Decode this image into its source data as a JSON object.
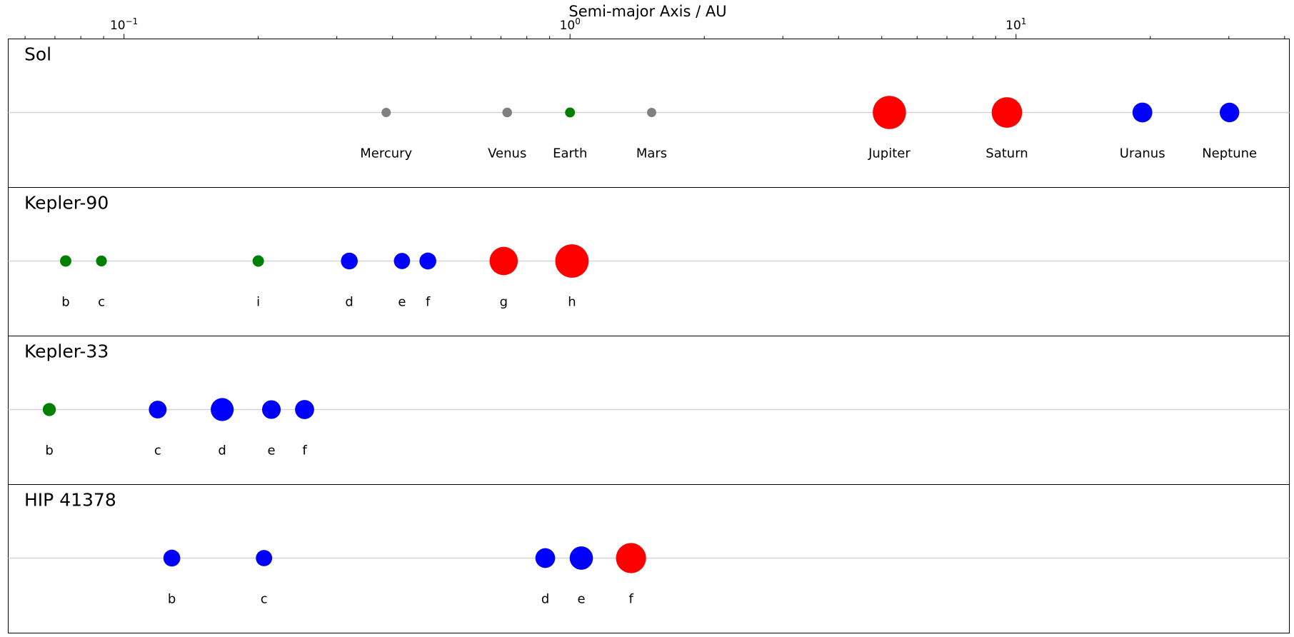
{
  "chart_data": {
    "type": "scatter",
    "xlabel": "Semi-major Axis / AU",
    "xscale": "log",
    "xlim": [
      0.055,
      41
    ],
    "xticks": [
      {
        "value": 0.1,
        "base": "10",
        "exp": "−1"
      },
      {
        "value": 1,
        "base": "10",
        "exp": "0"
      },
      {
        "value": 10,
        "base": "10",
        "exp": "1"
      }
    ],
    "grid": false,
    "legend": "none",
    "colors": {
      "rocky": "#808080",
      "earth": "#008000",
      "ice": "#0000ff",
      "gas": "#ff0000",
      "guide": "#d3d3d3",
      "frame": "#000000"
    },
    "systems": [
      {
        "name": "Sol",
        "planets": [
          {
            "label": "Mercury",
            "a": 0.387,
            "radius": 0.38,
            "color": "#808080"
          },
          {
            "label": "Venus",
            "a": 0.723,
            "radius": 0.95,
            "color": "#808080"
          },
          {
            "label": "Earth",
            "a": 1.0,
            "radius": 1.0,
            "color": "#008000"
          },
          {
            "label": "Mars",
            "a": 1.524,
            "radius": 0.53,
            "color": "#808080"
          },
          {
            "label": "Jupiter",
            "a": 5.2,
            "radius": 11.2,
            "color": "#ff0000"
          },
          {
            "label": "Saturn",
            "a": 9.54,
            "radius": 9.45,
            "color": "#ff0000"
          },
          {
            "label": "Uranus",
            "a": 19.2,
            "radius": 4.0,
            "color": "#0000ff"
          },
          {
            "label": "Neptune",
            "a": 30.1,
            "radius": 3.88,
            "color": "#0000ff"
          }
        ]
      },
      {
        "name": "Kepler-90",
        "planets": [
          {
            "label": "b",
            "a": 0.074,
            "radius": 1.31,
            "color": "#008000"
          },
          {
            "label": "c",
            "a": 0.089,
            "radius": 1.19,
            "color": "#008000"
          },
          {
            "label": "i",
            "a": 0.2,
            "radius": 1.32,
            "color": "#008000"
          },
          {
            "label": "d",
            "a": 0.32,
            "radius": 2.88,
            "color": "#0000ff"
          },
          {
            "label": "e",
            "a": 0.42,
            "radius": 2.67,
            "color": "#0000ff"
          },
          {
            "label": "f",
            "a": 0.48,
            "radius": 2.89,
            "color": "#0000ff"
          },
          {
            "label": "g",
            "a": 0.71,
            "radius": 8.13,
            "color": "#ff0000"
          },
          {
            "label": "h",
            "a": 1.01,
            "radius": 11.32,
            "color": "#ff0000"
          }
        ]
      },
      {
        "name": "Kepler-33",
        "planets": [
          {
            "label": "b",
            "a": 0.068,
            "radius": 1.74,
            "color": "#008000"
          },
          {
            "label": "c",
            "a": 0.119,
            "radius": 3.2,
            "color": "#0000ff"
          },
          {
            "label": "d",
            "a": 0.166,
            "radius": 5.35,
            "color": "#0000ff"
          },
          {
            "label": "e",
            "a": 0.214,
            "radius": 3.53,
            "color": "#0000ff"
          },
          {
            "label": "f",
            "a": 0.254,
            "radius": 3.71,
            "color": "#0000ff"
          }
        ]
      },
      {
        "name": "HIP 41378",
        "planets": [
          {
            "label": "b",
            "a": 0.128,
            "radius": 2.9,
            "color": "#0000ff"
          },
          {
            "label": "c",
            "a": 0.206,
            "radius": 2.7,
            "color": "#0000ff"
          },
          {
            "label": "d",
            "a": 0.88,
            "radius": 3.96,
            "color": "#0000ff"
          },
          {
            "label": "e",
            "a": 1.06,
            "radius": 5.51,
            "color": "#0000ff"
          },
          {
            "label": "f",
            "a": 1.37,
            "radius": 9.2,
            "color": "#ff0000"
          }
        ]
      }
    ]
  }
}
